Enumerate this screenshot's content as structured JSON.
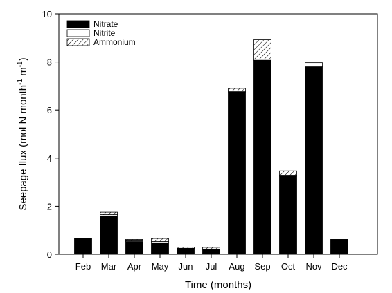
{
  "chart_data": {
    "type": "bar",
    "stacked": true,
    "xlabel": "Time (months)",
    "ylabel": {
      "pre": "Seepage flux (mol N month",
      "sup1": "-1",
      "mid": " m",
      "sup2": "-1",
      "post": ")"
    },
    "ylim": [
      0,
      10
    ],
    "yticks": [
      "0",
      "2",
      "4",
      "6",
      "8",
      "10"
    ],
    "categories": [
      "Feb",
      "Mar",
      "Apr",
      "May",
      "Jun",
      "Jul",
      "Aug",
      "Sep",
      "Oct",
      "Nov",
      "Dec"
    ],
    "series": [
      {
        "name": "Nitrate",
        "fill": "black",
        "values": [
          0.67,
          1.6,
          0.53,
          0.48,
          0.23,
          0.2,
          6.75,
          8.07,
          3.25,
          7.8,
          0.62
        ]
      },
      {
        "name": "Nitrite",
        "fill": "white",
        "values": [
          0.0,
          0.05,
          0.03,
          0.05,
          0.02,
          0.02,
          0.03,
          0.05,
          0.04,
          0.17,
          0.0
        ]
      },
      {
        "name": "Ammonium",
        "fill": "hatch",
        "values": [
          0.0,
          0.1,
          0.06,
          0.13,
          0.05,
          0.07,
          0.12,
          0.8,
          0.18,
          0.0,
          0.0
        ]
      }
    ],
    "legend_position": "top-left",
    "grid": false
  }
}
